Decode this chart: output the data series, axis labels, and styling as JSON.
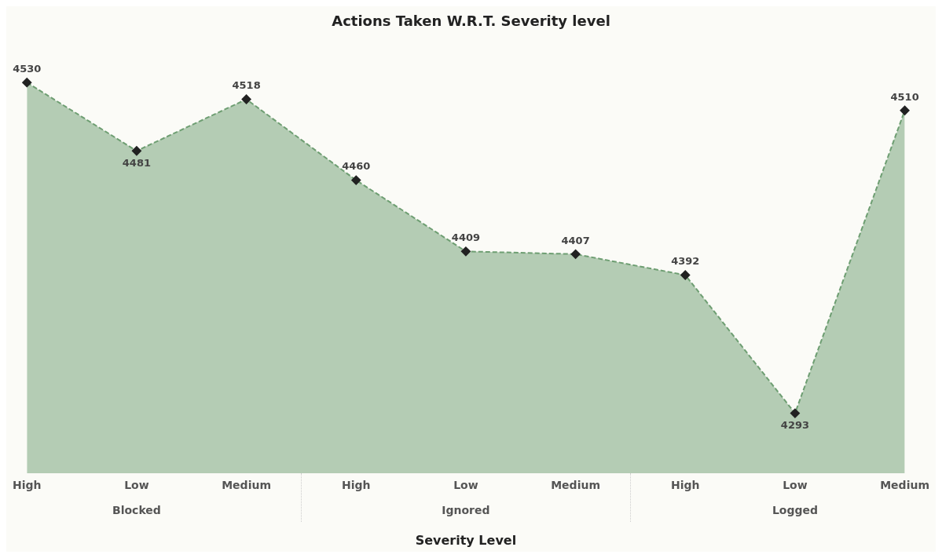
{
  "chart_data": {
    "type": "area",
    "title": "Actions Taken W.R.T. Severity level",
    "xlabel": "Severity Level",
    "categories": [
      "High",
      "Low",
      "Medium",
      "High",
      "Low",
      "Medium",
      "High",
      "Low",
      "Medium"
    ],
    "series": [
      {
        "color": "#6e9e72",
        "values": [
          4530,
          4481,
          4518,
          4460,
          4409,
          4407,
          4392,
          4293,
          4510
        ]
      }
    ],
    "annotations": [
      "Blocked",
      "Ignored",
      "Logged"
    ],
    "tick_labels": "x",
    "data_labels": true,
    "marker": "diamond",
    "line_style": "dashed",
    "grid": false,
    "legend": false
  }
}
